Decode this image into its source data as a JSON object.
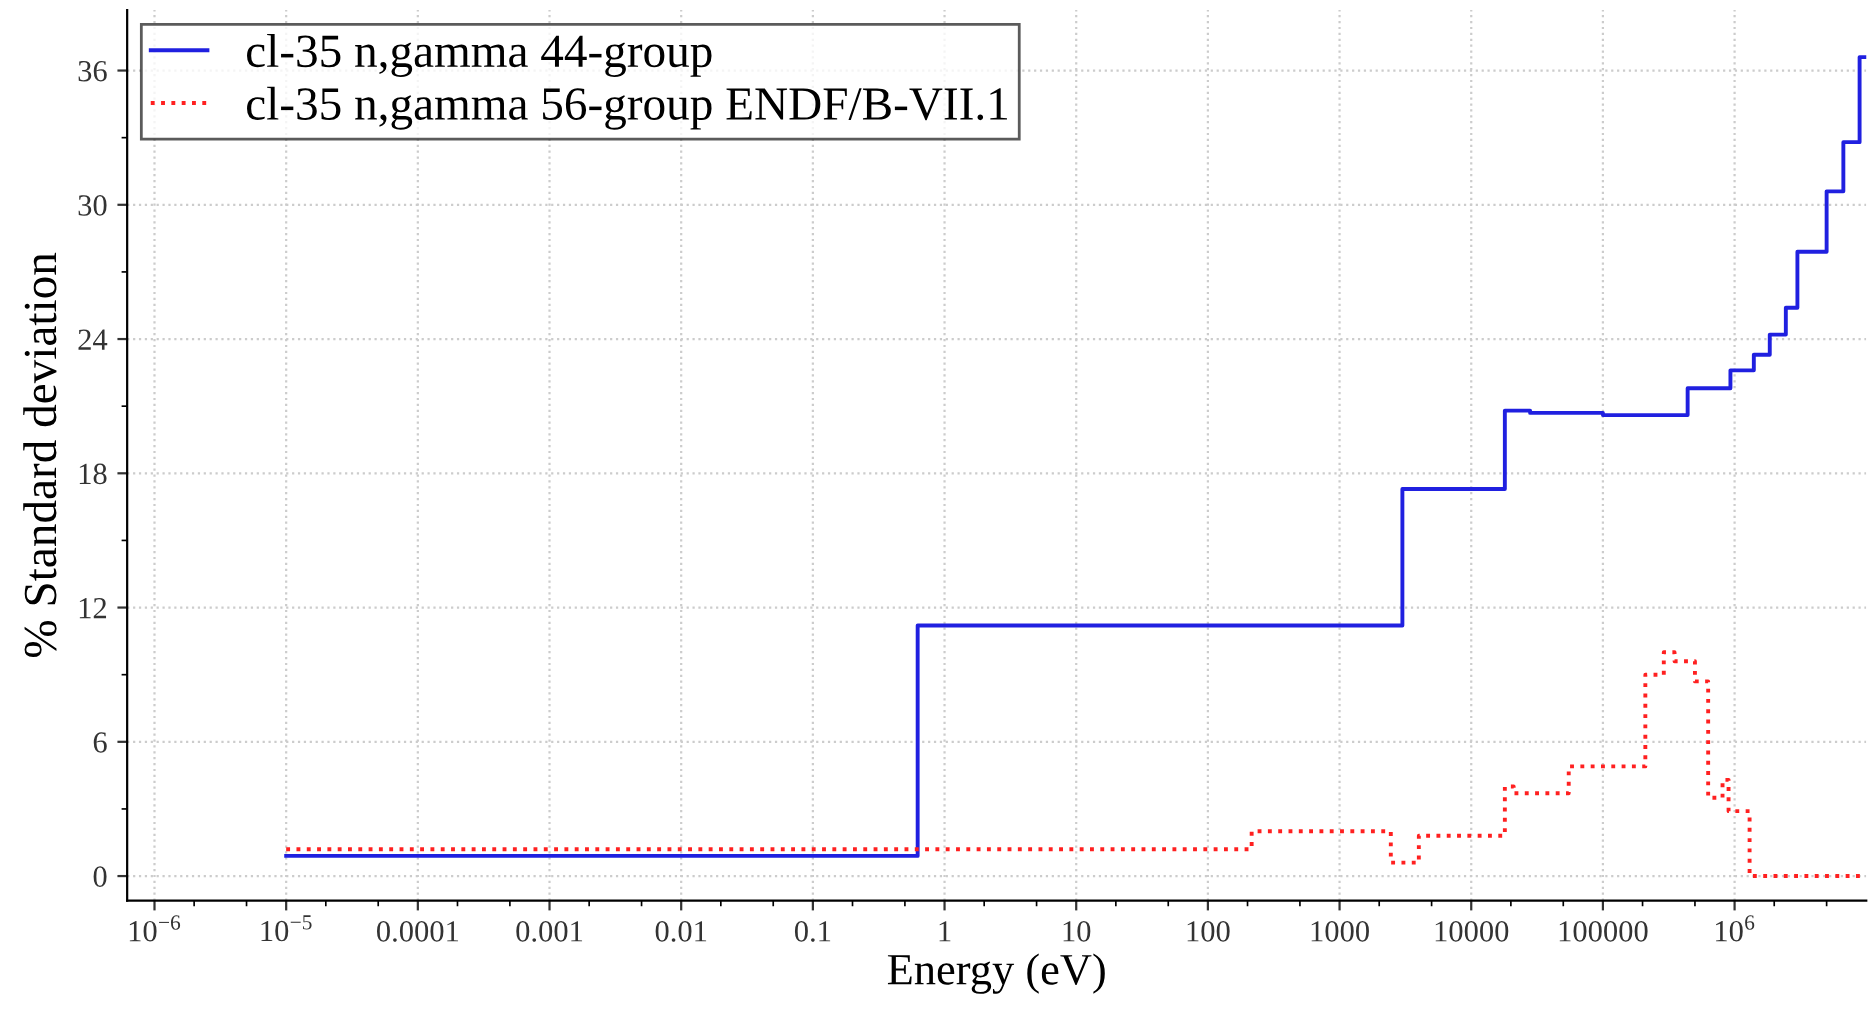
{
  "chart_data": {
    "type": "step",
    "xlabel": "Energy (eV)",
    "ylabel": "% Standard deviation",
    "log": "x",
    "xlim": [
      6.2e-07,
      10000000.0
    ],
    "ylim": [
      -1.1,
      38.7
    ],
    "xticks": [
      {
        "value": 1e-06,
        "label": "10$^{−6}$"
      },
      {
        "value": 1e-05,
        "label": "10$^{−5}$"
      },
      {
        "value": 0.0001,
        "label": "0.0001"
      },
      {
        "value": 0.001,
        "label": "0.001"
      },
      {
        "value": 0.01,
        "label": "0.01"
      },
      {
        "value": 0.1,
        "label": "0.1"
      },
      {
        "value": 1,
        "label": "1"
      },
      {
        "value": 10,
        "label": "10"
      },
      {
        "value": 100,
        "label": "100"
      },
      {
        "value": 1000,
        "label": "1000"
      },
      {
        "value": 10000,
        "label": "10000"
      },
      {
        "value": 100000,
        "label": "100000"
      },
      {
        "value": 1000000.0,
        "label": "10$^{6}$"
      }
    ],
    "yticks": [
      0,
      6,
      12,
      18,
      24,
      30,
      36
    ],
    "grid": true,
    "legend": "top left",
    "series": [
      {
        "name": "cl-35 n,gamma 44-group",
        "color": "#2020e0",
        "line_style": "solid",
        "x": [
          1e-05,
          0.625,
          3000,
          18000,
          28000,
          100000,
          440000,
          930000,
          1400000.0,
          1850000.0,
          2450000.0,
          3000000.0,
          5000000.0,
          6700000.0,
          8900000.0,
          10000000.0
        ],
        "values": [
          0.9,
          11.2,
          17.3,
          20.8,
          20.7,
          20.6,
          21.8,
          22.6,
          23.3,
          24.2,
          25.4,
          27.9,
          30.6,
          32.8,
          36.6,
          36.6
        ]
      },
      {
        "name": "cl-35 n,gamma 56-group ENDF/B-VII.1",
        "color": "#ff2020",
        "line_style": "dotted",
        "x": [
          1e-05,
          215,
          2450,
          4000,
          18000,
          21000,
          55000,
          210000,
          290000,
          350000,
          500000,
          630000,
          810000,
          900000,
          1300000.0,
          10000000.0
        ],
        "values": [
          1.2,
          2.0,
          0.6,
          1.8,
          4.0,
          3.7,
          4.9,
          9.0,
          10.0,
          9.6,
          8.7,
          3.5,
          4.3,
          2.9,
          0,
          0
        ]
      }
    ]
  }
}
